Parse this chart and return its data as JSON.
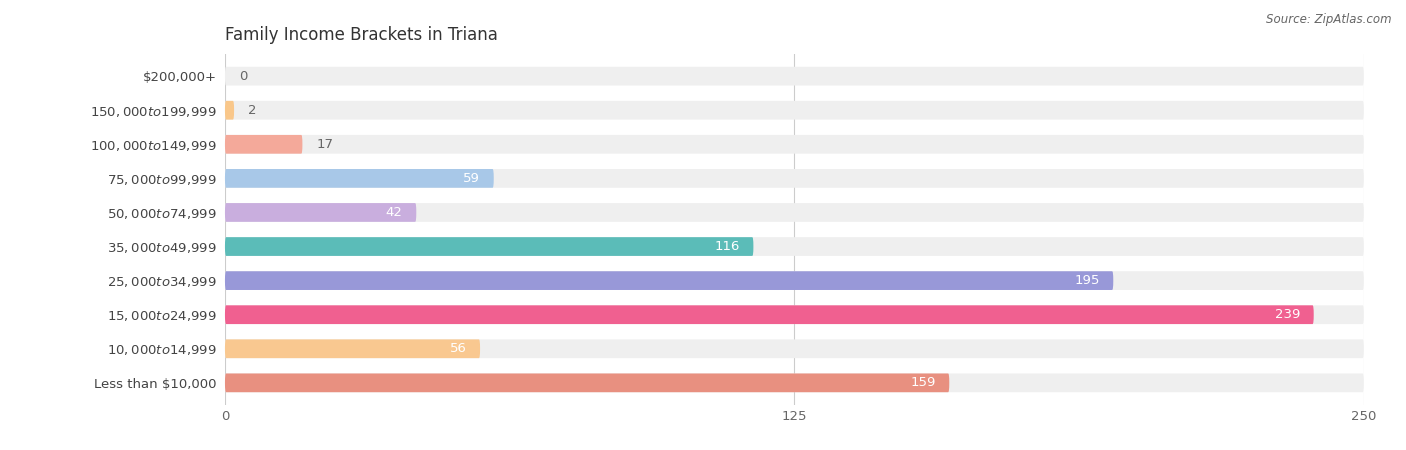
{
  "title": "Family Income Brackets in Triana",
  "source": "Source: ZipAtlas.com",
  "categories": [
    "Less than $10,000",
    "$10,000 to $14,999",
    "$15,000 to $24,999",
    "$25,000 to $34,999",
    "$35,000 to $49,999",
    "$50,000 to $74,999",
    "$75,000 to $99,999",
    "$100,000 to $149,999",
    "$150,000 to $199,999",
    "$200,000+"
  ],
  "values": [
    0,
    2,
    17,
    59,
    42,
    116,
    195,
    239,
    56,
    159
  ],
  "bar_colors": [
    "#F4849C",
    "#F9C78A",
    "#F4A99A",
    "#A8C8E8",
    "#C9AEDE",
    "#5BBCB8",
    "#9898D8",
    "#F06090",
    "#F9C890",
    "#E89080"
  ],
  "background_color": "#ffffff",
  "bar_bg_color": "#EFEFEF",
  "xlim": [
    0,
    250
  ],
  "xticks": [
    0,
    125,
    250
  ],
  "label_fontsize": 9.5,
  "title_fontsize": 12,
  "value_label_inside_color": "#ffffff",
  "value_label_outside_color": "#666666",
  "inside_threshold": 40
}
